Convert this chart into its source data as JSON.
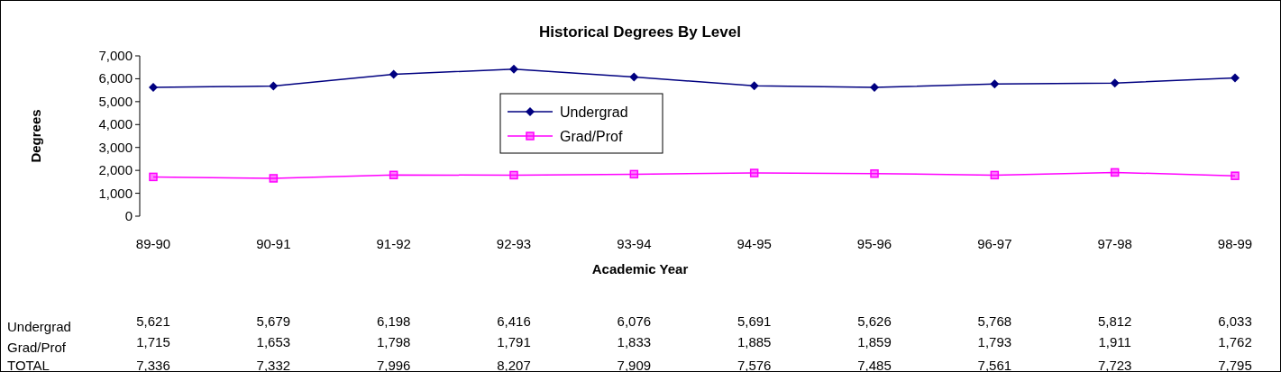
{
  "chart_data": {
    "type": "line",
    "title": "Historical Degrees By Level",
    "xlabel": "Academic Year",
    "ylabel": "Degrees",
    "categories": [
      "89-90",
      "90-91",
      "91-92",
      "92-93",
      "93-94",
      "94-95",
      "95-96",
      "96-97",
      "97-98",
      "98-99"
    ],
    "series": [
      {
        "name": "Undergrad",
        "color": "#000080",
        "marker": "diamond",
        "values": [
          5621,
          5679,
          6198,
          6416,
          6076,
          5691,
          5626,
          5768,
          5812,
          6033
        ],
        "value_labels": [
          "5,621",
          "5,679",
          "6,198",
          "6,416",
          "6,076",
          "5,691",
          "5,626",
          "5,768",
          "5,812",
          "6,033"
        ]
      },
      {
        "name": "Grad/Prof",
        "color": "#ff00ff",
        "marker": "square",
        "values": [
          1715,
          1653,
          1798,
          1791,
          1833,
          1885,
          1859,
          1793,
          1911,
          1762
        ],
        "value_labels": [
          "1,715",
          "1,653",
          "1,798",
          "1,791",
          "1,833",
          "1,885",
          "1,859",
          "1,793",
          "1,911",
          "1,762"
        ]
      }
    ],
    "totals": [
      "7,336",
      "7,332",
      "7,996",
      "8,207",
      "7,909",
      "7,576",
      "7,485",
      "7,561",
      "7,723",
      "7,795"
    ],
    "annotations": [
      "TOTAL"
    ],
    "ylim": [
      0,
      7000
    ],
    "yticks": [
      {
        "value": 0,
        "label": "0"
      },
      {
        "value": 1000,
        "label": "1,000"
      },
      {
        "value": 2000,
        "label": "2,000"
      },
      {
        "value": 3000,
        "label": "3,000"
      },
      {
        "value": 4000,
        "label": "4,000"
      },
      {
        "value": 5000,
        "label": "5,000"
      },
      {
        "value": 6000,
        "label": "6,000"
      },
      {
        "value": 7000,
        "label": "7,000"
      }
    ],
    "grid": false,
    "legend": "top"
  }
}
